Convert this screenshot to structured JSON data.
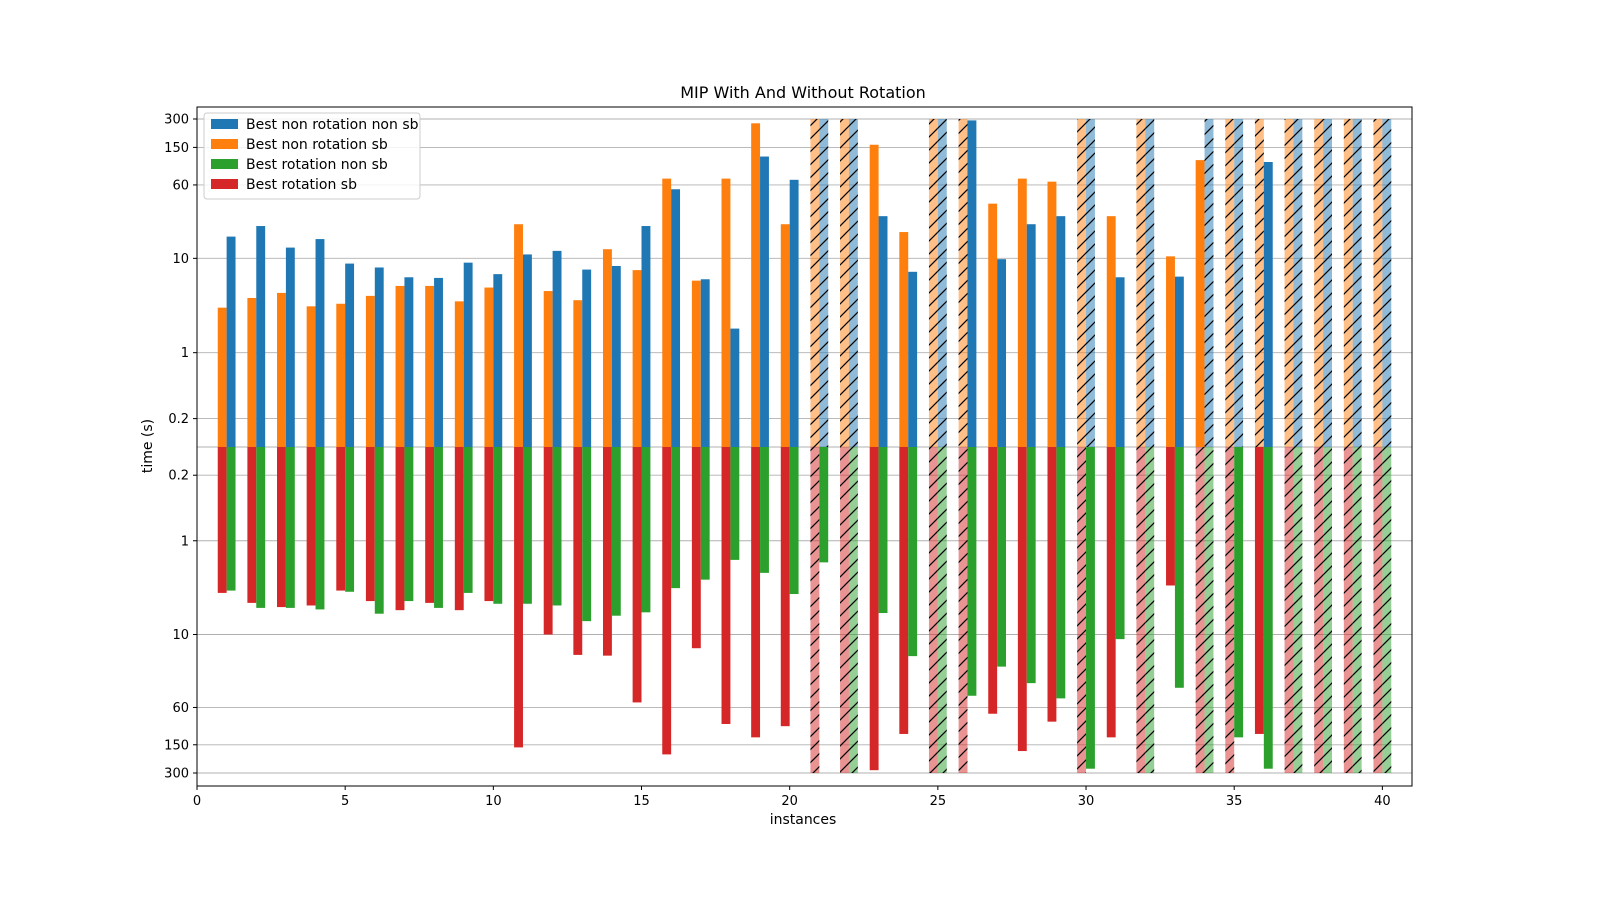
{
  "chart_data": {
    "type": "bar",
    "title": "MIP With And Without Rotation",
    "xlabel": "instances",
    "ylabel": "time (s)",
    "xlim": [
      0,
      41
    ],
    "xticks": [
      "0",
      "5",
      "10",
      "15",
      "20",
      "25",
      "30",
      "35",
      "40"
    ],
    "yscale": "log",
    "ylim": [
      0.1,
      300
    ],
    "yticks_top": [
      "300",
      "150",
      "60",
      "10",
      "1",
      "0.2"
    ],
    "yticks_bottom": [
      "0.2",
      "1",
      "10",
      "60",
      "150",
      "300"
    ],
    "timeout": 300,
    "timeout_note": "translucent hatched bars mark instances that reached the 300 s limit",
    "legend": {
      "placement": "top-left",
      "entries": [
        "Best non rotation non sb",
        "Best non rotation sb",
        "Best rotation non sb",
        "Best rotation sb"
      ]
    },
    "colors": {
      "Best non rotation non sb": "#1f77b4",
      "Best non rotation sb": "#ff7f0e",
      "Best rotation non sb": "#2ca02c",
      "Best rotation sb": "#d62728"
    },
    "instances": [
      1,
      2,
      3,
      4,
      5,
      6,
      7,
      8,
      9,
      10,
      11,
      12,
      13,
      14,
      15,
      16,
      17,
      18,
      19,
      20,
      21,
      22,
      23,
      24,
      25,
      26,
      27,
      28,
      29,
      30,
      31,
      32,
      33,
      34,
      35,
      36,
      37,
      38,
      39,
      40
    ],
    "series": [
      {
        "name": "Best non rotation sb",
        "panel": "top",
        "offset": -0.15,
        "values": [
          3.0,
          3.8,
          4.3,
          3.1,
          3.3,
          4.0,
          5.1,
          5.1,
          3.5,
          4.9,
          23,
          4.5,
          3.6,
          12.5,
          7.5,
          70,
          5.8,
          70,
          270,
          23,
          300,
          300,
          160,
          19,
          300,
          300,
          38,
          70,
          65,
          300,
          28,
          300,
          10.5,
          110,
          300,
          300,
          300,
          300,
          300,
          300
        ],
        "timeout": [
          0,
          0,
          0,
          0,
          0,
          0,
          0,
          0,
          0,
          0,
          0,
          0,
          0,
          0,
          0,
          0,
          0,
          0,
          0,
          0,
          1,
          1,
          0,
          0,
          1,
          1,
          0,
          0,
          0,
          1,
          0,
          1,
          0,
          0,
          1,
          1,
          1,
          1,
          1,
          1
        ]
      },
      {
        "name": "Best non rotation non sb",
        "panel": "top",
        "offset": 0.15,
        "values": [
          17,
          22,
          13,
          16,
          8.8,
          8.0,
          6.3,
          6.2,
          9.0,
          6.8,
          11,
          12,
          7.6,
          8.3,
          22,
          54,
          6.0,
          1.8,
          120,
          68,
          300,
          300,
          28,
          7.2,
          300,
          290,
          9.8,
          23,
          28,
          300,
          6.3,
          300,
          6.4,
          300,
          300,
          105,
          300,
          300,
          300,
          300
        ],
        "timeout": [
          0,
          0,
          0,
          0,
          0,
          0,
          0,
          0,
          0,
          0,
          0,
          0,
          0,
          0,
          0,
          0,
          0,
          0,
          0,
          0,
          1,
          1,
          0,
          0,
          1,
          0,
          0,
          0,
          0,
          1,
          0,
          1,
          0,
          1,
          1,
          0,
          1,
          1,
          1,
          1
        ]
      },
      {
        "name": "Best rotation sb",
        "panel": "bottom",
        "offset": -0.15,
        "values": [
          3.6,
          4.6,
          5.1,
          4.9,
          3.4,
          4.4,
          5.5,
          4.6,
          5.5,
          4.4,
          160,
          10.0,
          16.5,
          16.8,
          53,
          190,
          14.0,
          90,
          125,
          95,
          300,
          300,
          280,
          115,
          300,
          300,
          70,
          175,
          85,
          300,
          125,
          300,
          3.0,
          300,
          300,
          115,
          300,
          300,
          300,
          300
        ],
        "timeout": [
          0,
          0,
          0,
          0,
          0,
          0,
          0,
          0,
          0,
          0,
          0,
          0,
          0,
          0,
          0,
          0,
          0,
          0,
          0,
          0,
          1,
          1,
          0,
          0,
          1,
          1,
          0,
          0,
          0,
          1,
          0,
          1,
          0,
          1,
          1,
          0,
          1,
          1,
          1,
          1
        ]
      },
      {
        "name": "Best rotation non sb",
        "panel": "bottom",
        "offset": 0.15,
        "values": [
          3.4,
          5.2,
          5.2,
          5.4,
          3.5,
          6.0,
          4.4,
          5.2,
          3.6,
          4.7,
          4.7,
          4.9,
          7.2,
          6.3,
          5.8,
          3.2,
          2.6,
          1.6,
          2.2,
          3.7,
          1.7,
          300,
          5.9,
          17.0,
          300,
          45,
          22,
          33,
          48,
          270,
          11.2,
          300,
          37,
          300,
          125,
          270,
          300,
          300,
          300,
          300
        ],
        "timeout": [
          0,
          0,
          0,
          0,
          0,
          0,
          0,
          0,
          0,
          0,
          0,
          0,
          0,
          0,
          0,
          0,
          0,
          0,
          0,
          0,
          0,
          1,
          0,
          0,
          1,
          0,
          0,
          0,
          0,
          0,
          0,
          1,
          0,
          1,
          0,
          0,
          1,
          1,
          1,
          1
        ]
      }
    ]
  }
}
